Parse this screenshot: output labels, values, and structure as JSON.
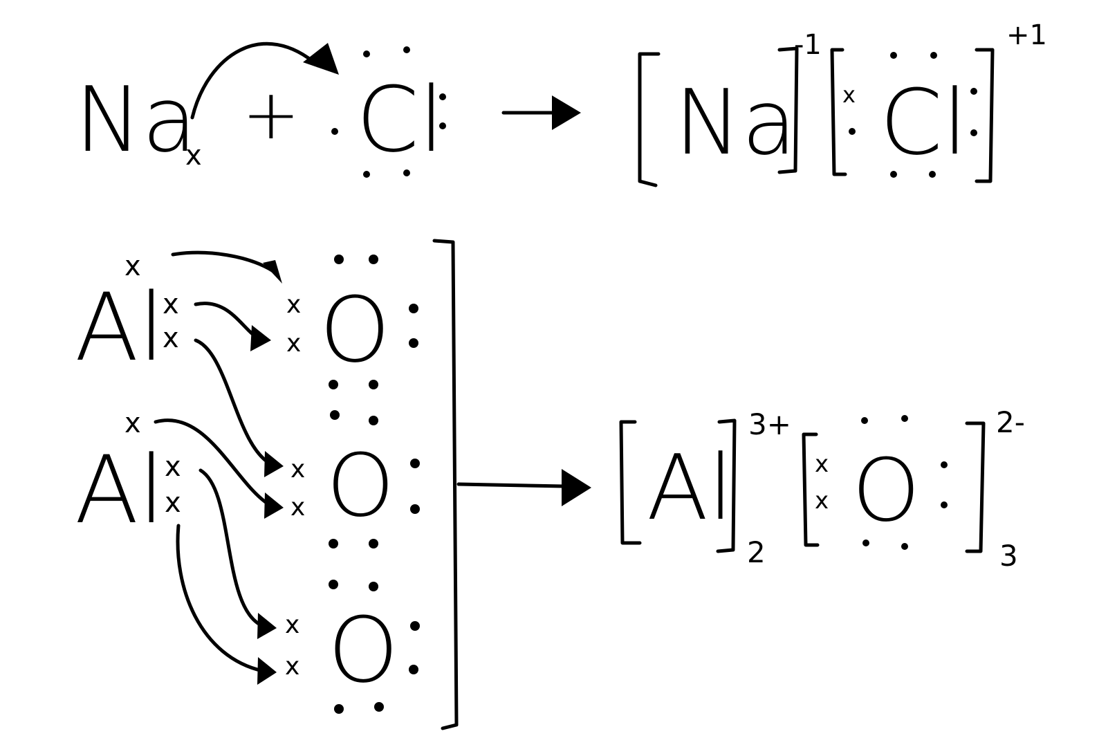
{
  "reaction1": {
    "reactant_metal": "Na",
    "plus": "+",
    "reactant_nonmetal": "Cl",
    "product_cation": "Na",
    "product_anion": "Cl",
    "cation_charge": "-1",
    "anion_charge": "+1",
    "electron_mark": "x"
  },
  "reaction2": {
    "metal_1": "Al",
    "metal_2": "Al",
    "oxygen_1": "O",
    "oxygen_2": "O",
    "oxygen_3": "O",
    "product_cation": "Al",
    "product_anion": "O",
    "cation_charge": "3+",
    "anion_charge": "2-",
    "cation_subscript": "2",
    "anion_subscript": "3",
    "electron_mark": "x"
  },
  "colors": {
    "ink": "#000000",
    "background": "#ffffff"
  }
}
